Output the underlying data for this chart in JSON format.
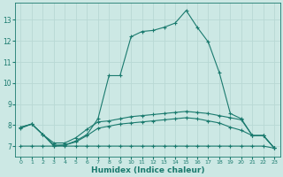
{
  "xlabel": "Humidex (Indice chaleur)",
  "background_color": "#cce8e4",
  "grid_color": "#b8d8d4",
  "line_color": "#1a7a6e",
  "xlim": [
    -0.5,
    23.5
  ],
  "ylim": [
    6.5,
    13.8
  ],
  "yticks": [
    7,
    8,
    9,
    10,
    11,
    12,
    13
  ],
  "xticks": [
    0,
    1,
    2,
    3,
    4,
    5,
    6,
    7,
    8,
    9,
    10,
    11,
    12,
    13,
    14,
    15,
    16,
    17,
    18,
    19,
    20,
    21,
    22,
    23
  ],
  "line1_x": [
    0,
    1,
    2,
    3,
    4,
    5,
    6,
    7,
    8,
    9,
    10,
    11,
    12,
    13,
    14,
    15,
    16,
    17,
    18,
    19,
    20,
    21,
    22,
    23
  ],
  "line1_y": [
    7.9,
    8.05,
    7.55,
    7.0,
    7.05,
    7.25,
    7.55,
    8.3,
    10.35,
    10.35,
    12.2,
    12.45,
    12.5,
    12.65,
    12.85,
    13.45,
    12.65,
    11.95,
    10.5,
    8.55,
    8.3,
    7.5,
    7.5,
    6.9
  ],
  "line2_x": [
    0,
    1,
    2,
    3,
    4,
    5,
    6,
    7,
    8,
    9,
    10,
    11,
    12,
    13,
    14,
    15,
    16,
    17,
    18,
    19,
    20,
    21,
    22,
    23
  ],
  "line2_y": [
    7.9,
    8.05,
    7.55,
    7.15,
    7.15,
    7.4,
    7.8,
    8.15,
    8.2,
    8.3,
    8.4,
    8.45,
    8.5,
    8.55,
    8.6,
    8.65,
    8.6,
    8.55,
    8.45,
    8.35,
    8.25,
    7.5,
    7.5,
    6.9
  ],
  "line3_x": [
    0,
    1,
    2,
    3,
    4,
    5,
    6,
    7,
    8,
    9,
    10,
    11,
    12,
    13,
    14,
    15,
    16,
    17,
    18,
    19,
    20,
    21,
    22,
    23
  ],
  "line3_y": [
    7.85,
    8.05,
    7.55,
    7.05,
    7.05,
    7.2,
    7.5,
    7.85,
    7.95,
    8.05,
    8.1,
    8.15,
    8.2,
    8.25,
    8.3,
    8.35,
    8.3,
    8.2,
    8.1,
    7.9,
    7.75,
    7.5,
    7.5,
    6.9
  ],
  "line4_x": [
    0,
    1,
    2,
    3,
    4,
    5,
    6,
    7,
    8,
    9,
    10,
    11,
    12,
    13,
    14,
    15,
    16,
    17,
    18,
    19,
    20,
    21,
    22,
    23
  ],
  "line4_y": [
    7.0,
    7.0,
    7.0,
    7.0,
    7.0,
    7.0,
    7.0,
    7.0,
    7.0,
    7.0,
    7.0,
    7.0,
    7.0,
    7.0,
    7.0,
    7.0,
    7.0,
    7.0,
    7.0,
    7.0,
    7.0,
    7.0,
    7.0,
    6.9
  ]
}
